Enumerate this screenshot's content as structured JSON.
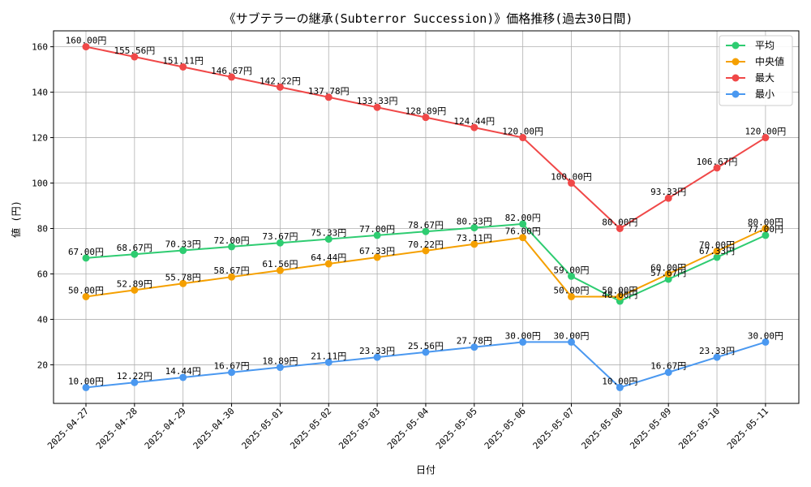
{
  "chart_data": {
    "type": "line",
    "title": "《サブテラーの継承(Subterror Succession)》価格推移(過去30日間)",
    "xlabel": "日付",
    "ylabel": "値 (円)",
    "x": [
      "2025-04-27",
      "2025-04-28",
      "2025-04-29",
      "2025-04-30",
      "2025-05-01",
      "2025-05-02",
      "2025-05-03",
      "2025-05-04",
      "2025-05-05",
      "2025-05-06",
      "2025-05-07",
      "2025-05-08",
      "2025-05-09",
      "2025-05-10",
      "2025-05-11"
    ],
    "ylim": [
      3,
      167
    ],
    "yticks": [
      20,
      40,
      60,
      80,
      100,
      120,
      140,
      160
    ],
    "grid": true,
    "legend_position": "top-right",
    "value_suffix": "円",
    "series": [
      {
        "name": "平均",
        "color": "#2ecc71",
        "values": [
          67.0,
          68.67,
          70.33,
          72.0,
          73.67,
          75.33,
          77.0,
          78.67,
          80.33,
          82.0,
          59.0,
          48.0,
          57.67,
          67.33,
          77.0
        ]
      },
      {
        "name": "中央値",
        "color": "#f5a000",
        "values": [
          50.0,
          52.89,
          55.78,
          58.67,
          61.56,
          64.44,
          67.33,
          70.22,
          73.11,
          76.0,
          50.0,
          50.0,
          60.0,
          70.0,
          80.0
        ]
      },
      {
        "name": "最大",
        "color": "#f04848",
        "values": [
          160.0,
          155.56,
          151.11,
          146.67,
          142.22,
          137.78,
          133.33,
          128.89,
          124.44,
          120.0,
          100.0,
          80.0,
          93.33,
          106.67,
          120.0
        ]
      },
      {
        "name": "最小",
        "color": "#4a98f0",
        "values": [
          10.0,
          12.22,
          14.44,
          16.67,
          18.89,
          21.11,
          23.33,
          25.56,
          27.78,
          30.0,
          30.0,
          10.0,
          16.67,
          23.33,
          30.0
        ]
      }
    ]
  }
}
